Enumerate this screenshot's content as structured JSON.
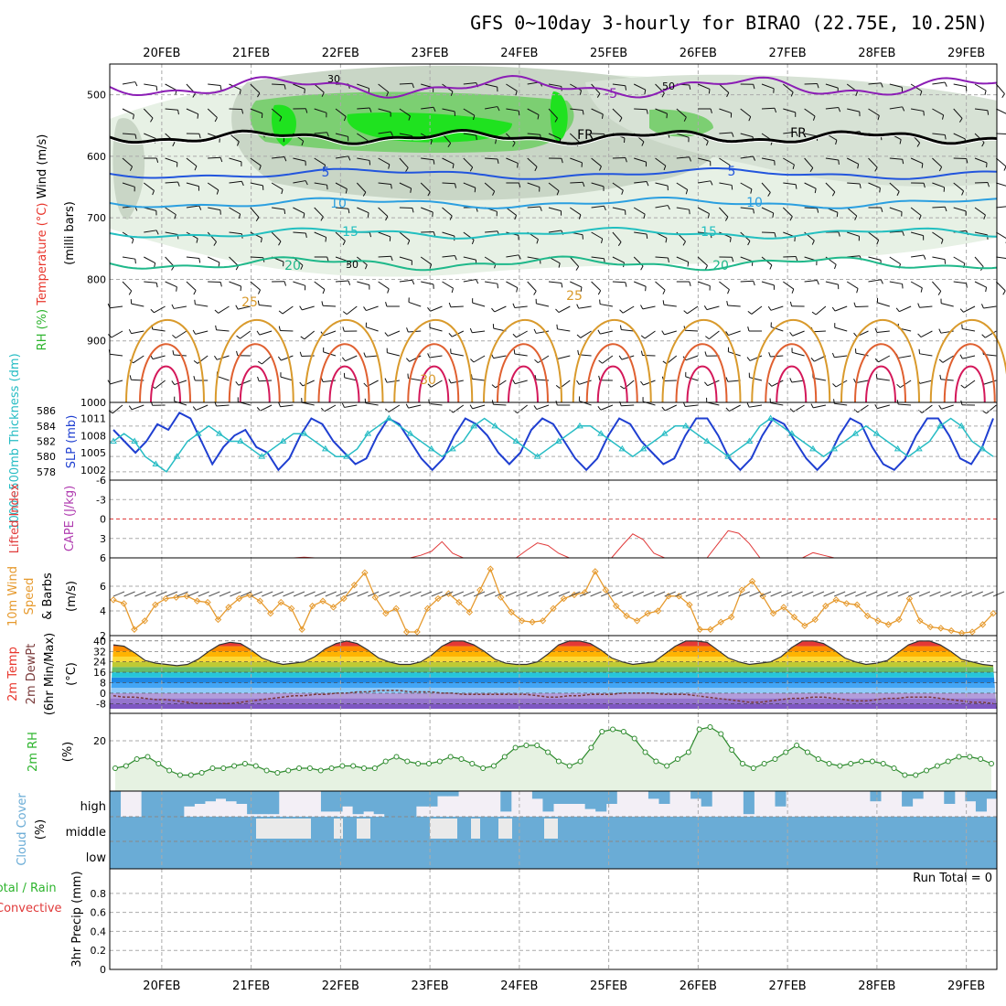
{
  "title": "GFS 0~10day 3-hourly for BIRAO (22.75E, 10.25N)",
  "dates": [
    "20FEB",
    "21FEB",
    "22FEB",
    "23FEB",
    "24FEB",
    "25FEB",
    "26FEB",
    "27FEB",
    "28FEB",
    "29FEB"
  ],
  "colors": {
    "temp_red": "#e8352b",
    "rh_green": "#2db42d",
    "slp_blue": "#1f3fd1",
    "thick_cyan": "#26bcc4",
    "cape_purple": "#b03cb0",
    "lifted_red": "#e03a3a",
    "wind_orange": "#e69a2e",
    "cloud_blue": "#6aacd6"
  },
  "chart_data": [
    {
      "type": "heatmap",
      "panel": "upper-air",
      "ylabel_parts": [
        "Wind (m/s)",
        "Temperature (°C)",
        "RH (%)",
        "(milli bars)"
      ],
      "y_ticks": [
        500,
        600,
        700,
        800,
        900,
        1000
      ],
      "ylim": [
        1000,
        450
      ],
      "temperature_contours": [
        {
          "value": -5,
          "label": "-5"
        },
        {
          "value": 0,
          "label": "FR"
        },
        {
          "value": 5,
          "label": "5"
        },
        {
          "value": 10,
          "label": "10"
        },
        {
          "value": 15,
          "label": "15"
        },
        {
          "value": 20,
          "label": "20"
        },
        {
          "value": 25,
          "label": "25"
        },
        {
          "value": 30,
          "label": "30"
        }
      ],
      "rh_contour_labels": [
        "30",
        "50"
      ]
    },
    {
      "type": "line",
      "panel": "thickness-slp",
      "ylabel_left": "1000~500mb Thickness (dm)",
      "ylabel_right": "SLP (mb)",
      "thickness_ticks": [
        578,
        580,
        582,
        584,
        586
      ],
      "slp_ticks": [
        1002,
        1005,
        1008,
        1011
      ],
      "series": [
        {
          "name": "SLP (mb)",
          "values": [
            1009,
            1007,
            1005,
            1007,
            1010,
            1009,
            1012,
            1011,
            1007,
            1003,
            1006,
            1008,
            1009,
            1006,
            1005,
            1002,
            1004,
            1008,
            1011,
            1010,
            1007,
            1005,
            1003,
            1004,
            1008,
            1011,
            1010,
            1007,
            1004,
            1002,
            1004,
            1008,
            1011,
            1010,
            1008,
            1005,
            1003,
            1005,
            1009,
            1011,
            1010,
            1007,
            1004,
            1002,
            1004,
            1008,
            1011,
            1010,
            1007,
            1005,
            1003,
            1004,
            1008,
            1011,
            1011,
            1008,
            1004,
            1002,
            1004,
            1008,
            1011,
            1010,
            1007,
            1004,
            1002,
            1004,
            1008,
            1011,
            1010,
            1006,
            1003,
            1002,
            1004,
            1008,
            1011,
            1011,
            1008,
            1004,
            1003,
            1006,
            1011
          ]
        },
        {
          "name": "Thickness (dm)",
          "values": [
            582,
            583,
            582,
            580,
            579,
            578,
            580,
            582,
            583,
            584,
            583,
            582,
            582,
            581,
            580,
            581,
            582,
            583,
            583,
            582,
            581,
            580,
            580,
            581,
            583,
            584,
            585,
            584,
            583,
            582,
            581,
            580,
            581,
            582,
            584,
            585,
            584,
            583,
            582,
            581,
            580,
            581,
            582,
            583,
            584,
            584,
            583,
            582,
            581,
            580,
            581,
            582,
            583,
            584,
            584,
            583,
            582,
            581,
            580,
            581,
            582,
            584,
            585,
            584,
            583,
            582,
            581,
            580,
            581,
            582,
            583,
            584,
            583,
            582,
            581,
            580,
            581,
            582,
            584,
            585,
            584,
            582,
            581,
            580
          ]
        }
      ]
    },
    {
      "type": "line",
      "panel": "cape-li",
      "ylabel": "CAPE (J/kg) Lifted Index",
      "li_ticks": [
        -6,
        -3,
        0,
        3,
        6
      ],
      "series": [
        {
          "name": "Lifted Index",
          "values": [
            6.5,
            6.5,
            6.5,
            6.5,
            6.5,
            6.5,
            6.5,
            6.5,
            6.5,
            6.5,
            6.5,
            6.5,
            6.5,
            6.5,
            6.5,
            6.5,
            6.5,
            6.5,
            5.9,
            6.2,
            6.5,
            6.5,
            6.5,
            6.5,
            6.5,
            6.5,
            6.5,
            6.5,
            6.5,
            5.6,
            5.0,
            3.5,
            5.3,
            6.5,
            6.5,
            6.5,
            6.5,
            6.5,
            6.5,
            4.8,
            3.7,
            4.1,
            5.3,
            6.5,
            6.5,
            6.5,
            6.5,
            6.5,
            4.1,
            2.3,
            3.2,
            5.3,
            6.5,
            6.5,
            6.5,
            6.5,
            6.5,
            3.9,
            1.8,
            2.2,
            3.8,
            6.5,
            6.5,
            6.5,
            6.5,
            6.5,
            5.2,
            5.6,
            6.3,
            6.5,
            6.5,
            6.5,
            6.5,
            6.5,
            6.5,
            6.5,
            6.5,
            6.5,
            6.5,
            6.5,
            6.5,
            6.5,
            6.5,
            6.5
          ]
        }
      ]
    },
    {
      "type": "line",
      "panel": "10m-wind",
      "ylabel": "10m Wind Speed & Barbs (m/s)",
      "y_ticks": [
        2,
        4,
        6
      ],
      "series": [
        {
          "name": "10m Wind Speed (m/s)",
          "values": [
            4.9,
            4.6,
            2.5,
            3.2,
            4.5,
            5.0,
            5.1,
            5.2,
            4.8,
            4.7,
            3.3,
            4.3,
            5.0,
            5.3,
            4.8,
            3.8,
            4.7,
            4.2,
            2.5,
            4.4,
            4.8,
            4.3,
            5.0,
            6.1,
            7.1,
            5.1,
            3.8,
            4.2,
            2.3,
            2.3,
            4.2,
            5.0,
            5.4,
            4.7,
            3.9,
            5.7,
            7.4,
            5.1,
            3.9,
            3.2,
            3.1,
            3.2,
            4.2,
            5.0,
            5.3,
            5.5,
            7.2,
            5.7,
            4.4,
            3.6,
            3.2,
            3.8,
            4.0,
            5.2,
            5.2,
            4.5,
            2.5,
            2.5,
            3.1,
            3.5,
            5.7,
            6.4,
            5.2,
            3.8,
            4.3,
            3.5,
            2.8,
            3.3,
            4.4,
            4.9,
            4.6,
            4.5,
            3.6,
            3.2,
            2.9,
            3.3,
            5.0,
            3.2,
            2.7,
            2.6,
            2.4,
            2.2,
            2.3,
            2.9,
            3.8
          ]
        }
      ]
    },
    {
      "type": "area",
      "panel": "2m-temp",
      "ylabel": "2m Temp 2m DewPt (6hr Min/Max) (°C)",
      "y_ticks": [
        -8,
        0,
        8,
        16,
        24,
        32,
        40
      ],
      "series": [
        {
          "name": "2m Temp (°C)",
          "values": [
            37,
            36,
            31,
            25,
            23,
            22,
            21,
            22,
            26,
            32,
            37,
            39,
            38,
            33,
            27,
            24,
            22,
            23,
            24,
            28,
            34,
            38,
            40,
            38,
            33,
            27,
            24,
            22,
            22,
            24,
            29,
            36,
            40,
            40,
            37,
            32,
            26,
            23,
            22,
            22,
            24,
            30,
            37,
            40,
            40,
            38,
            33,
            27,
            24,
            22,
            23,
            24,
            30,
            36,
            40,
            40,
            39,
            33,
            27,
            24,
            22,
            23,
            24,
            28,
            35,
            40,
            40,
            38,
            33,
            27,
            24,
            22,
            23,
            25,
            31,
            37,
            40,
            40,
            37,
            32,
            26,
            24,
            22,
            21
          ]
        },
        {
          "name": "2m DewPt (°C)",
          "values": [
            -2,
            -3,
            -3,
            -4,
            -5,
            -5,
            -6,
            -7,
            -8,
            -8,
            -8,
            -8,
            -7,
            -6,
            -5,
            -4,
            -3,
            -2,
            -2,
            -1,
            -1,
            0,
            0,
            1,
            1,
            2,
            2,
            2,
            1,
            1,
            1,
            0,
            0,
            -1,
            -1,
            -1,
            -1,
            -1,
            -1,
            -1,
            -2,
            -3,
            -3,
            -2,
            -2,
            -1,
            -1,
            -1,
            0,
            0,
            0,
            0,
            -1,
            -1,
            -1,
            -2,
            -3,
            -4,
            -5,
            -6,
            -7,
            -7,
            -6,
            -5,
            -4,
            -4,
            -3,
            -3,
            -4,
            -5,
            -6,
            -6,
            -5,
            -4,
            -4,
            -3,
            -3,
            -3,
            -4,
            -5,
            -6,
            -7,
            -7,
            -8
          ]
        }
      ]
    },
    {
      "type": "line",
      "panel": "2m-rh",
      "ylabel": "2m RH (%)",
      "y_ticks": [
        20
      ],
      "series": [
        {
          "name": "2m RH (%)",
          "values": [
            8,
            9,
            12,
            13,
            10,
            7,
            5,
            5,
            6,
            8,
            8,
            9,
            10,
            9,
            7,
            6,
            7,
            8,
            8,
            7,
            8,
            9,
            9,
            8,
            8,
            11,
            13,
            11,
            10,
            10,
            11,
            13,
            12,
            10,
            8,
            9,
            13,
            17,
            18,
            18,
            15,
            11,
            9,
            11,
            17,
            24,
            25,
            24,
            21,
            15,
            11,
            9,
            12,
            15,
            25,
            26,
            23,
            16,
            10,
            8,
            10,
            12,
            15,
            18,
            15,
            12,
            10,
            9,
            10,
            11,
            11,
            10,
            8,
            5,
            5,
            7,
            9,
            11,
            13,
            13,
            12,
            10
          ]
        }
      ]
    },
    {
      "type": "bar",
      "panel": "cloud-cover",
      "ylabel": "Cloud Cover (%)",
      "categories": [
        "high",
        "middle",
        "low"
      ]
    },
    {
      "type": "bar",
      "panel": "precip",
      "ylabel_parts": [
        "Total / Rain",
        "Convective",
        "3hr Precip (mm)"
      ],
      "y_ticks": [
        0,
        0.2,
        0.4,
        0.6,
        0.8
      ],
      "ylim": [
        0,
        1
      ],
      "run_total": "Run Total = 0",
      "values": []
    }
  ]
}
